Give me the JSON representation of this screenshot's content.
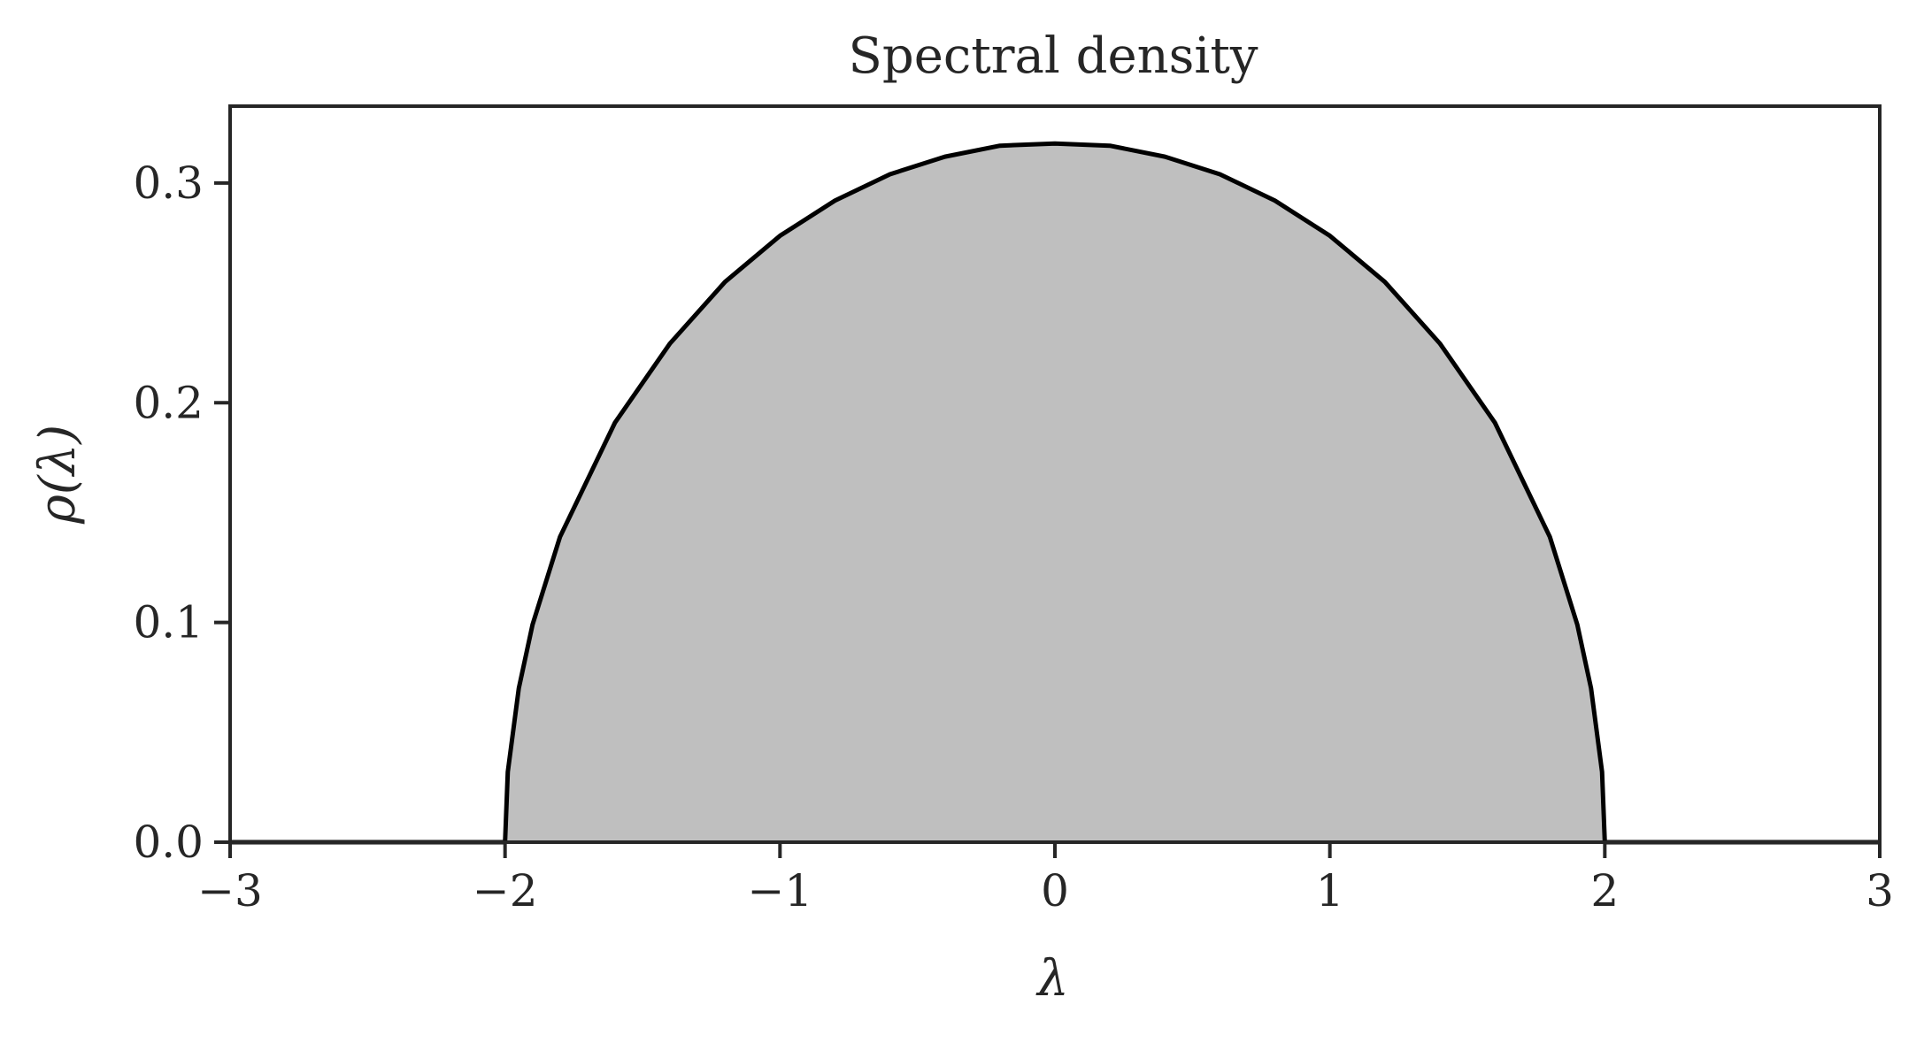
{
  "chart_data": {
    "type": "area",
    "title": "Spectral density",
    "xlabel": "λ",
    "ylabel": "ρ(λ)",
    "xlim": [
      -3,
      3
    ],
    "ylim": [
      0,
      0.335
    ],
    "x_ticks": [
      -3,
      -2,
      -1,
      0,
      1,
      2,
      3
    ],
    "x_tick_labels": [
      "−3",
      "−2",
      "−1",
      "0",
      "1",
      "2",
      "3"
    ],
    "y_ticks": [
      0.0,
      0.1,
      0.2,
      0.3
    ],
    "y_tick_labels": [
      "0.0",
      "0.1",
      "0.2",
      "0.3"
    ],
    "grid": false,
    "series": [
      {
        "x": [
          -3.0,
          -2.0,
          -1.99,
          -1.95,
          -1.9,
          -1.8,
          -1.6,
          -1.4,
          -1.2,
          -1.0,
          -0.8,
          -0.6,
          -0.4,
          -0.2,
          0.0,
          0.2,
          0.4,
          0.6,
          0.8,
          1.0,
          1.2,
          1.4,
          1.6,
          1.8,
          1.9,
          1.95,
          1.99,
          2.0,
          3.0
        ],
        "y": [
          0.0,
          0.0,
          0.032,
          0.07,
          0.099,
          0.139,
          0.191,
          0.227,
          0.255,
          0.276,
          0.292,
          0.304,
          0.312,
          0.317,
          0.318,
          0.317,
          0.312,
          0.304,
          0.292,
          0.276,
          0.255,
          0.227,
          0.191,
          0.139,
          0.099,
          0.07,
          0.032,
          0.0,
          0.0
        ],
        "color": "#000000",
        "fill_color": "#bfbfbf"
      }
    ]
  }
}
